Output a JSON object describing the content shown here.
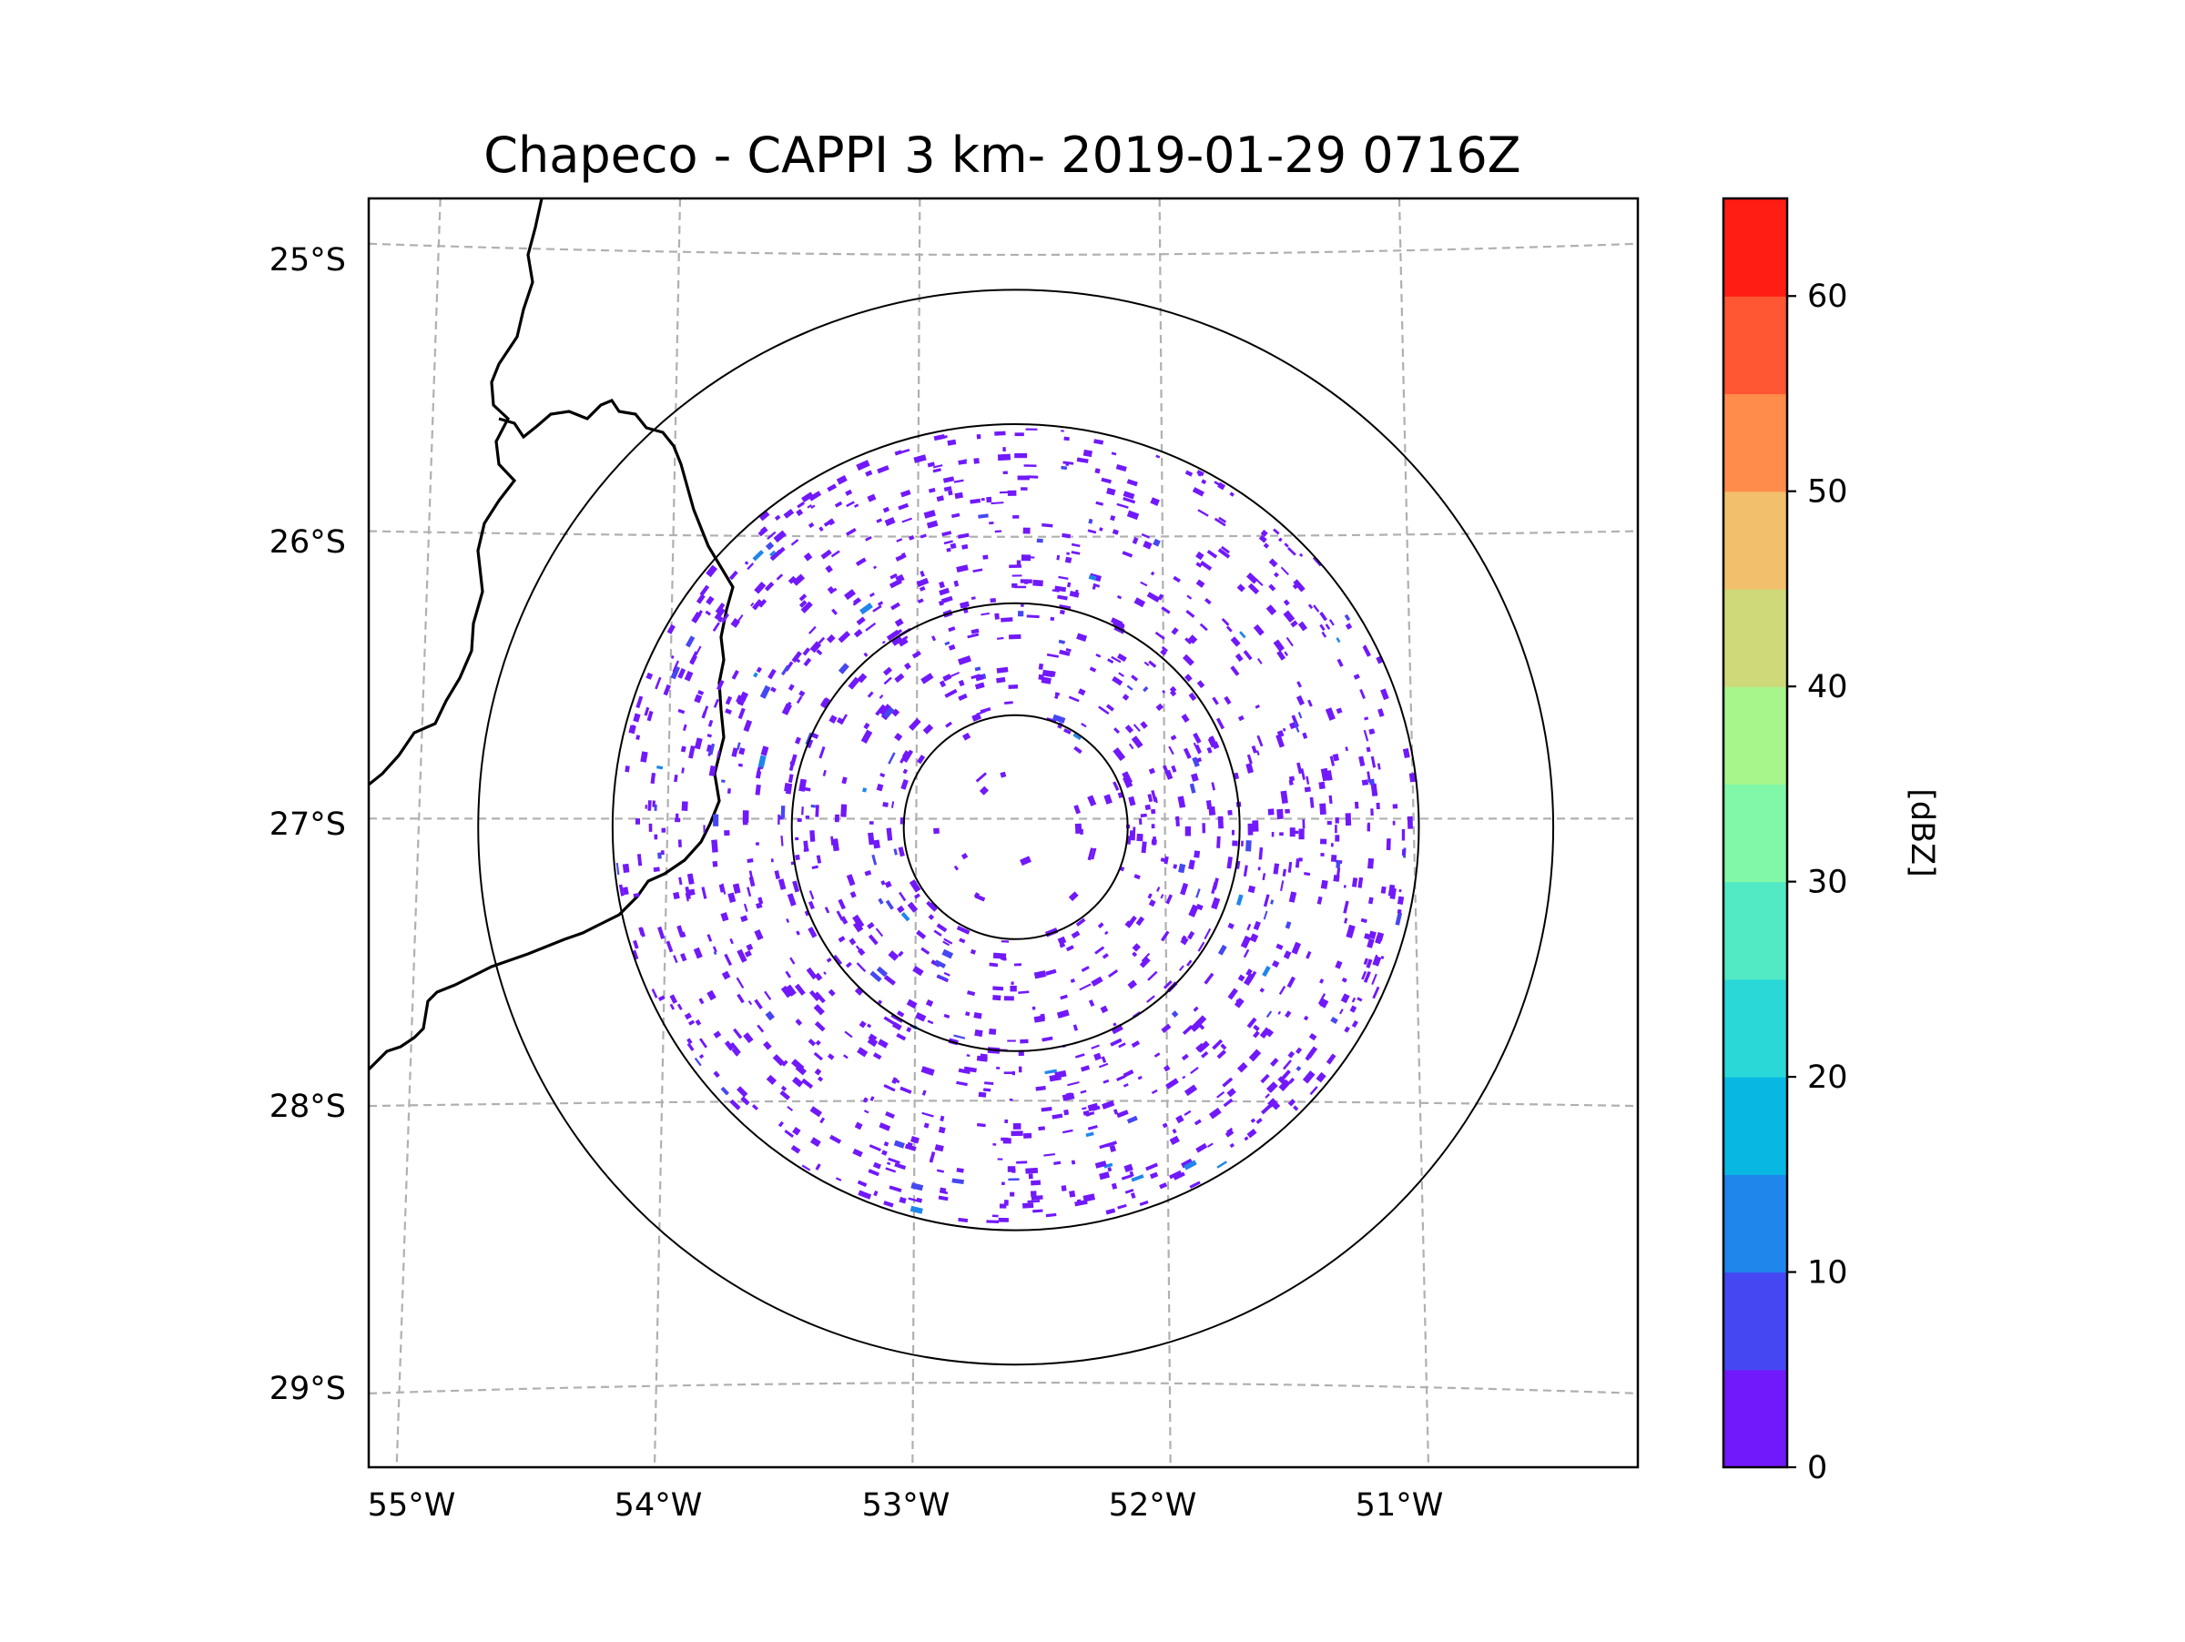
{
  "chart_data": {
    "type": "radar-ppi-map",
    "title": "Chapeco - CAPPI 3 km- 2019-01-29 0716Z",
    "radar_center": {
      "lon": -52.6,
      "lat": -27.03
    },
    "lon_range": [
      -55.2,
      -50.1
    ],
    "lat_range": [
      -29.3,
      -24.8
    ],
    "lon_ticks": [
      -55,
      -54,
      -53,
      -52,
      -51
    ],
    "lon_tick_labels": [
      "55°W",
      "54°W",
      "53°W",
      "52°W",
      "51°W"
    ],
    "lat_ticks": [
      -25,
      -26,
      -27,
      -28,
      -29
    ],
    "lat_tick_labels": [
      "25°S",
      "26°S",
      "27°S",
      "28°S",
      "29°S"
    ],
    "range_rings_deg": [
      0.45,
      0.9,
      1.62,
      2.16
    ],
    "gridlines": "dashed",
    "reflectivity_echoes": {
      "dominant_range_dbz": [
        0,
        5
      ],
      "minor_range_dbz": [
        5,
        15
      ],
      "coverage": "scattered weak echoes across the radar domain, densest in an annulus beyond the innermost ring"
    },
    "colorbar": {
      "label": "[dBZ]",
      "min": 0,
      "max": 65,
      "step": 5,
      "ticks": [
        0,
        10,
        20,
        30,
        40,
        50,
        60
      ],
      "tick_labels": [
        "0",
        "10",
        "20",
        "30",
        "40",
        "50",
        "60"
      ],
      "colors": [
        "#7119fa",
        "#4548f2",
        "#1f86ec",
        "#08b8e3",
        "#2ad8d8",
        "#51eac4",
        "#80f8a8",
        "#a6f68c",
        "#cfd97a",
        "#f2bf6c",
        "#ff8c4b",
        "#ff5634",
        "#ff1d14"
      ]
    }
  }
}
